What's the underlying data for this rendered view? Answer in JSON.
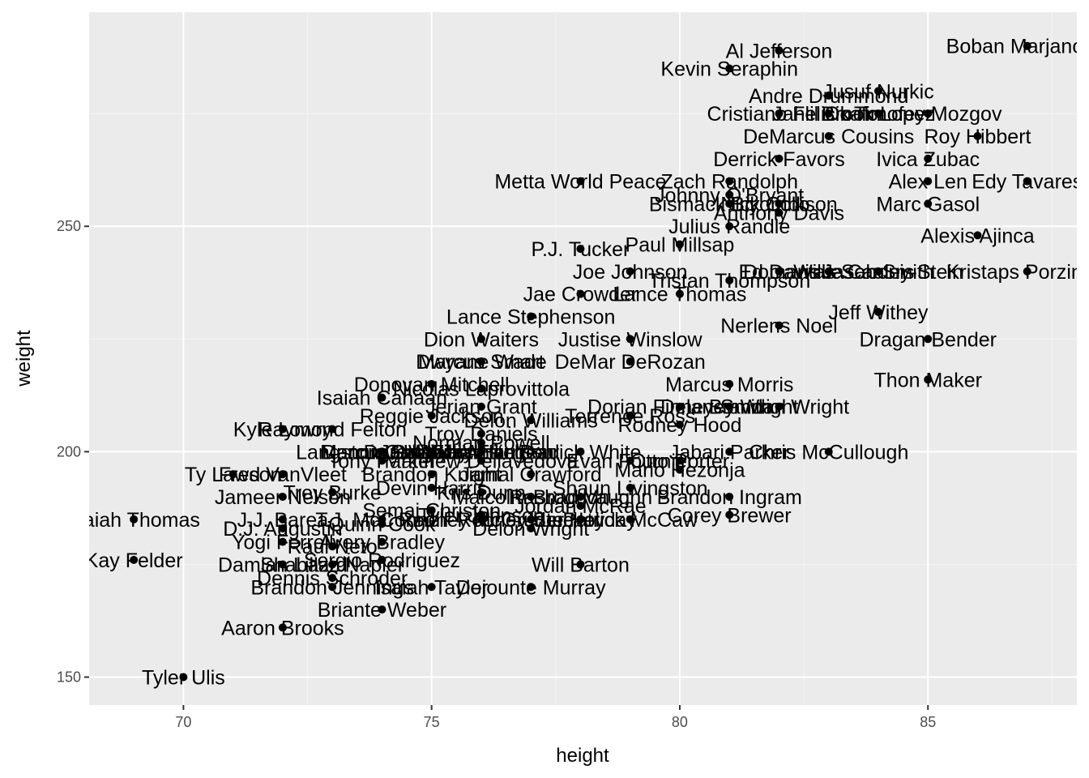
{
  "chart_data": {
    "type": "scatter",
    "title": "",
    "xlabel": "height",
    "ylabel": "weight",
    "xlim": [
      68.1,
      88.0
    ],
    "ylim": [
      143.8,
      297.5
    ],
    "xticks": [
      70,
      75,
      80,
      85
    ],
    "yticks": [
      150,
      200,
      250
    ],
    "grid": true,
    "legend": "none",
    "colors": {
      "panel": "#EBEBEB",
      "grid_major": "#FFFFFF",
      "grid_minor": "#F5F5F5",
      "point": "#000000",
      "label": "#000000",
      "tick_text": "#4D4D4D"
    },
    "points": [
      {
        "name": "Tyler Ulis",
        "x": 70,
        "y": 150
      },
      {
        "name": "Aaron Brooks",
        "x": 72,
        "y": 161
      },
      {
        "name": "Briante Weber",
        "x": 74,
        "y": 165
      },
      {
        "name": "Brandon Jennings",
        "x": 73,
        "y": 170
      },
      {
        "name": "Isaiah Taylor",
        "x": 75,
        "y": 170
      },
      {
        "name": "Dejounte Murray",
        "x": 77,
        "y": 170
      },
      {
        "name": "Kay Felder",
        "x": 69,
        "y": 176
      },
      {
        "name": "Will Barton",
        "x": 78,
        "y": 175
      },
      {
        "name": "Sergio Rodriguez",
        "x": 74,
        "y": 176
      },
      {
        "name": "Damian Lillard",
        "x": 72,
        "y": 175
      },
      {
        "name": "Dennis Schroder",
        "x": 73,
        "y": 172
      },
      {
        "name": "Yogi Ferrell",
        "x": 72,
        "y": 180
      },
      {
        "name": "Raul Neto",
        "x": 73,
        "y": 179
      },
      {
        "name": "Avery Bradley",
        "x": 74,
        "y": 180
      },
      {
        "name": "D.J. Augustin",
        "x": 72,
        "y": 183
      },
      {
        "name": "Isaiah Thomas",
        "x": 69,
        "y": 185
      },
      {
        "name": "Delon Wright",
        "x": 77,
        "y": 183
      },
      {
        "name": "Corey Brewer",
        "x": 81,
        "y": 186
      },
      {
        "name": "Rodney McGruder",
        "x": 76,
        "y": 185
      },
      {
        "name": "J.J. Barea",
        "x": 72,
        "y": 185
      },
      {
        "name": "T.J. McConnell",
        "x": 74,
        "y": 185
      },
      {
        "name": "Jrue Holiday",
        "x": 78,
        "y": 185
      },
      {
        "name": "Rodney Stuckey",
        "x": 77,
        "y": 185
      },
      {
        "name": "Quinn Cook",
        "x": 74,
        "y": 184
      },
      {
        "name": "Semaj Christon",
        "x": 75,
        "y": 187
      },
      {
        "name": "Tyler Johnson",
        "x": 76,
        "y": 186
      },
      {
        "name": "Jordan McRae",
        "x": 78,
        "y": 188
      },
      {
        "name": "Rashad Vaughn",
        "x": 78,
        "y": 190
      },
      {
        "name": "Brandon Ingram",
        "x": 81,
        "y": 190
      },
      {
        "name": "Malcolm Brogdon",
        "x": 77,
        "y": 190
      },
      {
        "name": "Jameer Nelson",
        "x": 72,
        "y": 190
      },
      {
        "name": "Kris Dunn",
        "x": 76,
        "y": 191
      },
      {
        "name": "Shaun Livingston",
        "x": 79,
        "y": 192
      },
      {
        "name": "Ty Lawson",
        "x": 71,
        "y": 195
      },
      {
        "name": "Fred VanVleet",
        "x": 72,
        "y": 195
      },
      {
        "name": "Trey Burke",
        "x": 73,
        "y": 191
      },
      {
        "name": "Devin Harris",
        "x": 75,
        "y": 192
      },
      {
        "name": "Jamal Crawford",
        "x": 77,
        "y": 195
      },
      {
        "name": "Mario Hezonja",
        "x": 80,
        "y": 196
      },
      {
        "name": "Patrick McCaw",
        "x": 79,
        "y": 185
      },
      {
        "name": "Matthew Dellavedova",
        "x": 76,
        "y": 198
      },
      {
        "name": "Evan Fournier",
        "x": 79,
        "y": 198
      },
      {
        "name": "Tony Parker",
        "x": 74,
        "y": 198
      },
      {
        "name": "Chris McCullough",
        "x": 83,
        "y": 200
      },
      {
        "name": "Jabari Parker",
        "x": 81,
        "y": 200
      },
      {
        "name": "Gary Harris",
        "x": 76,
        "y": 200
      },
      {
        "name": "Isaiah Whitehead",
        "x": 76,
        "y": 200
      },
      {
        "name": "Deron Williams",
        "x": 75,
        "y": 200
      },
      {
        "name": "Langston Galloway",
        "x": 74,
        "y": 200
      },
      {
        "name": "Norman Powell",
        "x": 76,
        "y": 202
      },
      {
        "name": "Dennis Smith",
        "x": 74,
        "y": 200
      },
      {
        "name": "Raymond Felton",
        "x": 73,
        "y": 205
      },
      {
        "name": "Kyle Lowry",
        "x": 72,
        "y": 205
      },
      {
        "name": "Jarrett Jack",
        "x": 75,
        "y": 200
      },
      {
        "name": "Troy Daniels",
        "x": 76,
        "y": 204
      },
      {
        "name": "Marcus Smart",
        "x": 76,
        "y": 220
      },
      {
        "name": "Rodney Hood",
        "x": 80,
        "y": 206
      },
      {
        "name": "Derrick White",
        "x": 78,
        "y": 200
      },
      {
        "name": "Marcus Paige",
        "x": 74,
        "y": 200
      },
      {
        "name": "Otto Porter",
        "x": 80,
        "y": 198
      },
      {
        "name": "Reggie Jackson",
        "x": 75,
        "y": 208
      },
      {
        "name": "Delon Williams",
        "x": 77,
        "y": 207
      },
      {
        "name": "Terrence Ross",
        "x": 79,
        "y": 208
      },
      {
        "name": "Justise Winslow",
        "x": 79,
        "y": 225
      },
      {
        "name": "Dorian Finney-Smith",
        "x": 80,
        "y": 210
      },
      {
        "name": "Delaney Wright",
        "x": 81,
        "y": 210
      },
      {
        "name": "Isaiah Canaan",
        "x": 74,
        "y": 212
      },
      {
        "name": "Marcus Morris",
        "x": 81,
        "y": 215
      },
      {
        "name": "Nicolas Laprovittola",
        "x": 76,
        "y": 214
      },
      {
        "name": "Nerlens Noel",
        "x": 82,
        "y": 228
      },
      {
        "name": "Jerian Grant",
        "x": 76,
        "y": 210
      },
      {
        "name": "Joe Johnson",
        "x": 79,
        "y": 240
      },
      {
        "name": "Lance Stephenson",
        "x": 77,
        "y": 230
      },
      {
        "name": "Donovan Mitchell",
        "x": 75,
        "y": 215
      },
      {
        "name": "Dion Waiters",
        "x": 76,
        "y": 225
      },
      {
        "name": "Domantas Sabonis",
        "x": 83,
        "y": 240
      },
      {
        "name": "Wayne Ellington",
        "x": 76,
        "y": 200
      },
      {
        "name": "Shabazz Napier",
        "x": 73,
        "y": 175
      },
      {
        "name": "Dwyane Wade",
        "x": 76,
        "y": 220
      },
      {
        "name": "DeMar DeRozan",
        "x": 79,
        "y": 220
      },
      {
        "name": "Julius Randle",
        "x": 81,
        "y": 250
      },
      {
        "name": "Thon Maker",
        "x": 85,
        "y": 216
      },
      {
        "name": "Jason Smith",
        "x": 84,
        "y": 240
      },
      {
        "name": "Brandan Wright",
        "x": 82,
        "y": 210
      },
      {
        "name": "Dragan Bender",
        "x": 85,
        "y": 225
      },
      {
        "name": "Brandon Knight",
        "x": 75,
        "y": 195
      },
      {
        "name": "Ivica Zubac",
        "x": 85,
        "y": 265
      },
      {
        "name": "Jahlil Okafor",
        "x": 83,
        "y": 275
      },
      {
        "name": "Jusuf Nurkic",
        "x": 84,
        "y": 280
      },
      {
        "name": "Andre Drummond",
        "x": 83,
        "y": 279
      },
      {
        "name": "Cristiano Felicio",
        "x": 82,
        "y": 275
      },
      {
        "name": "Timofey Mozgov",
        "x": 85,
        "y": 275
      },
      {
        "name": "Brook Lopez",
        "x": 84,
        "y": 275
      },
      {
        "name": "Roy Hibbert",
        "x": 86,
        "y": 270
      },
      {
        "name": "DeMarcus Cousins",
        "x": 83,
        "y": 270
      },
      {
        "name": "Zach Randolph",
        "x": 81,
        "y": 260
      },
      {
        "name": "Al Jefferson",
        "x": 82,
        "y": 289
      },
      {
        "name": "Kevin Seraphin",
        "x": 81,
        "y": 285
      },
      {
        "name": "Boban Marjanovic",
        "x": 87,
        "y": 290
      },
      {
        "name": "Edy Tavares",
        "x": 87,
        "y": 260
      },
      {
        "name": "Metta World Peace",
        "x": 78,
        "y": 260
      },
      {
        "name": "Alexis Ajinca",
        "x": 86,
        "y": 248
      },
      {
        "name": "Marc Gasol",
        "x": 85,
        "y": 255
      },
      {
        "name": "Kristaps Porzingis",
        "x": 87,
        "y": 240
      },
      {
        "name": "Anthony Davis",
        "x": 82,
        "y": 253
      },
      {
        "name": "Bismack Biyombo",
        "x": 81,
        "y": 255
      },
      {
        "name": "Johnny O'Bryant",
        "x": 81,
        "y": 257
      },
      {
        "name": "Derrick Favors",
        "x": 82,
        "y": 265
      },
      {
        "name": "Willie Cauley-Stein",
        "x": 84,
        "y": 240
      },
      {
        "name": "P.J. Tucker",
        "x": 78,
        "y": 245
      },
      {
        "name": "Lance Thomas",
        "x": 80,
        "y": 235
      },
      {
        "name": "Paul Millsap",
        "x": 80,
        "y": 246
      },
      {
        "name": "Alex Len",
        "x": 85,
        "y": 260
      },
      {
        "name": "Jae Crowder",
        "x": 78,
        "y": 235
      },
      {
        "name": "Tristan Thompson",
        "x": 81,
        "y": 238
      },
      {
        "name": "Nick Collison",
        "x": 82,
        "y": 255
      },
      {
        "name": "Ed Davis",
        "x": 82,
        "y": 240
      },
      {
        "name": "Jeff Withey",
        "x": 84,
        "y": 231
      }
    ]
  }
}
